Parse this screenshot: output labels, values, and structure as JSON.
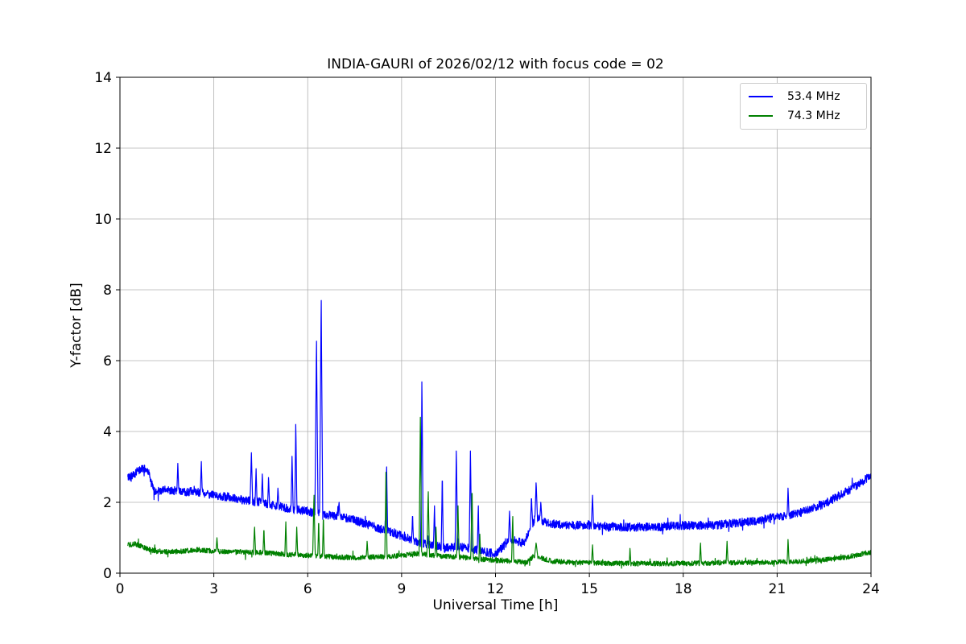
{
  "chart_data": {
    "type": "line",
    "title": "INDIA-GAURI of 2026/02/12 with focus code = 02",
    "xlabel": "Universal Time [h]",
    "ylabel": "Y-factor [dB]",
    "xlim": [
      0,
      24
    ],
    "ylim": [
      0,
      14
    ],
    "xticks": [
      0,
      3,
      6,
      9,
      12,
      15,
      18,
      21,
      24
    ],
    "yticks": [
      0,
      2,
      4,
      6,
      8,
      10,
      12,
      14
    ],
    "grid": true,
    "grid_color": "#b0b0b0",
    "legend_position": "upper right",
    "x_range_data": [
      0.25,
      24.0
    ],
    "series": [
      {
        "name": "53.4 MHz",
        "color": "#0000ff",
        "noise": 0.12,
        "baseline": [
          [
            0.25,
            2.7
          ],
          [
            0.45,
            2.8
          ],
          [
            0.7,
            2.95
          ],
          [
            0.9,
            2.9
          ],
          [
            1.0,
            2.55
          ],
          [
            1.1,
            2.3
          ],
          [
            1.5,
            2.35
          ],
          [
            2.0,
            2.3
          ],
          [
            2.5,
            2.3
          ],
          [
            3.0,
            2.2
          ],
          [
            3.5,
            2.15
          ],
          [
            4.0,
            2.05
          ],
          [
            4.5,
            2.0
          ],
          [
            5.0,
            1.9
          ],
          [
            5.5,
            1.8
          ],
          [
            6.0,
            1.75
          ],
          [
            6.5,
            1.65
          ],
          [
            7.0,
            1.6
          ],
          [
            7.5,
            1.5
          ],
          [
            8.0,
            1.35
          ],
          [
            8.5,
            1.2
          ],
          [
            9.0,
            1.05
          ],
          [
            9.3,
            0.95
          ],
          [
            9.6,
            0.85
          ],
          [
            10.0,
            0.8
          ],
          [
            10.4,
            0.7
          ],
          [
            10.8,
            0.75
          ],
          [
            11.2,
            0.7
          ],
          [
            11.6,
            0.6
          ],
          [
            12.0,
            0.55
          ],
          [
            12.3,
            0.8
          ],
          [
            12.5,
            0.95
          ],
          [
            12.7,
            0.9
          ],
          [
            12.9,
            0.85
          ],
          [
            13.1,
            1.2
          ],
          [
            13.3,
            1.6
          ],
          [
            13.5,
            1.45
          ],
          [
            13.8,
            1.4
          ],
          [
            14.2,
            1.35
          ],
          [
            15.0,
            1.35
          ],
          [
            16.0,
            1.3
          ],
          [
            17.0,
            1.3
          ],
          [
            18.0,
            1.35
          ],
          [
            19.0,
            1.35
          ],
          [
            19.5,
            1.4
          ],
          [
            20.0,
            1.45
          ],
          [
            20.5,
            1.5
          ],
          [
            21.0,
            1.6
          ],
          [
            21.5,
            1.65
          ],
          [
            22.0,
            1.8
          ],
          [
            22.5,
            1.95
          ],
          [
            23.0,
            2.2
          ],
          [
            23.5,
            2.45
          ],
          [
            24.0,
            2.75
          ]
        ],
        "spikes": [
          [
            1.85,
            3.1,
            0.03
          ],
          [
            2.6,
            3.15,
            0.03
          ],
          [
            4.2,
            3.4,
            0.04
          ],
          [
            4.35,
            2.95,
            0.03
          ],
          [
            4.55,
            2.8,
            0.03
          ],
          [
            4.75,
            2.7,
            0.03
          ],
          [
            5.05,
            2.4,
            0.03
          ],
          [
            5.5,
            3.3,
            0.035
          ],
          [
            5.62,
            4.2,
            0.035
          ],
          [
            6.28,
            6.55,
            0.05
          ],
          [
            6.43,
            7.7,
            0.05
          ],
          [
            7.0,
            2.0,
            0.03
          ],
          [
            8.52,
            3.0,
            0.035
          ],
          [
            9.35,
            1.6,
            0.03
          ],
          [
            9.65,
            5.4,
            0.04
          ],
          [
            10.05,
            1.9,
            0.03
          ],
          [
            10.3,
            2.6,
            0.035
          ],
          [
            10.75,
            3.45,
            0.04
          ],
          [
            11.2,
            3.45,
            0.04
          ],
          [
            11.45,
            1.9,
            0.03
          ],
          [
            12.45,
            1.75,
            0.035
          ],
          [
            13.15,
            2.1,
            0.04
          ],
          [
            13.3,
            2.55,
            0.04
          ],
          [
            13.45,
            2.0,
            0.035
          ],
          [
            15.1,
            2.2,
            0.035
          ],
          [
            21.35,
            2.4,
            0.03
          ]
        ]
      },
      {
        "name": "74.3 MHz",
        "color": "#008000",
        "noise": 0.07,
        "baseline": [
          [
            0.25,
            0.8
          ],
          [
            0.5,
            0.82
          ],
          [
            0.8,
            0.72
          ],
          [
            1.0,
            0.65
          ],
          [
            1.5,
            0.6
          ],
          [
            2.0,
            0.62
          ],
          [
            2.5,
            0.66
          ],
          [
            3.0,
            0.62
          ],
          [
            3.5,
            0.6
          ],
          [
            4.0,
            0.6
          ],
          [
            4.5,
            0.58
          ],
          [
            5.0,
            0.55
          ],
          [
            5.5,
            0.52
          ],
          [
            6.0,
            0.5
          ],
          [
            6.5,
            0.48
          ],
          [
            7.0,
            0.45
          ],
          [
            7.5,
            0.44
          ],
          [
            8.0,
            0.45
          ],
          [
            8.5,
            0.47
          ],
          [
            9.0,
            0.5
          ],
          [
            9.5,
            0.55
          ],
          [
            10.0,
            0.5
          ],
          [
            10.5,
            0.47
          ],
          [
            11.0,
            0.45
          ],
          [
            11.5,
            0.4
          ],
          [
            12.0,
            0.36
          ],
          [
            12.5,
            0.34
          ],
          [
            13.0,
            0.3
          ],
          [
            13.25,
            0.5
          ],
          [
            13.5,
            0.42
          ],
          [
            13.8,
            0.34
          ],
          [
            14.5,
            0.3
          ],
          [
            15.5,
            0.28
          ],
          [
            16.5,
            0.27
          ],
          [
            17.5,
            0.27
          ],
          [
            18.5,
            0.28
          ],
          [
            19.5,
            0.3
          ],
          [
            20.5,
            0.3
          ],
          [
            21.5,
            0.32
          ],
          [
            22.0,
            0.35
          ],
          [
            22.5,
            0.38
          ],
          [
            23.0,
            0.42
          ],
          [
            23.5,
            0.5
          ],
          [
            24.0,
            0.6
          ]
        ],
        "spikes": [
          [
            3.1,
            1.0,
            0.03
          ],
          [
            4.3,
            1.3,
            0.035
          ],
          [
            4.6,
            1.2,
            0.03
          ],
          [
            5.3,
            1.45,
            0.03
          ],
          [
            5.65,
            1.3,
            0.03
          ],
          [
            6.2,
            2.2,
            0.04
          ],
          [
            6.35,
            1.4,
            0.03
          ],
          [
            6.5,
            1.5,
            0.03
          ],
          [
            7.9,
            0.9,
            0.03
          ],
          [
            8.5,
            2.85,
            0.035
          ],
          [
            9.6,
            4.4,
            0.04
          ],
          [
            9.85,
            2.3,
            0.04
          ],
          [
            10.1,
            1.3,
            0.03
          ],
          [
            10.8,
            1.9,
            0.04
          ],
          [
            11.25,
            2.25,
            0.04
          ],
          [
            11.5,
            1.1,
            0.03
          ],
          [
            12.55,
            1.6,
            0.035
          ],
          [
            13.3,
            0.85,
            0.05
          ],
          [
            15.1,
            0.8,
            0.03
          ],
          [
            16.3,
            0.7,
            0.025
          ],
          [
            18.55,
            0.85,
            0.03
          ],
          [
            19.4,
            0.9,
            0.03
          ],
          [
            21.35,
            0.95,
            0.03
          ]
        ]
      }
    ]
  },
  "legend": {
    "items": [
      {
        "label": "53.4 MHz",
        "color": "#0000ff"
      },
      {
        "label": "74.3 MHz",
        "color": "#008000"
      }
    ]
  }
}
